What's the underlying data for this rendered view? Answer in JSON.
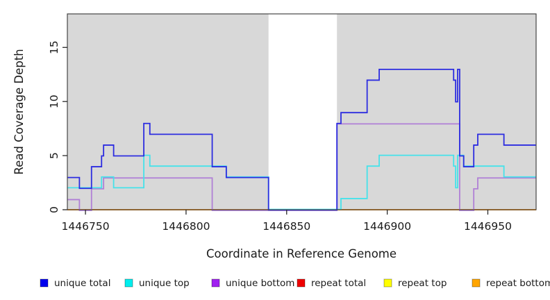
{
  "chart_data": {
    "type": "line",
    "step": true,
    "title": "",
    "xlabel": "Coordinate in Reference Genome",
    "ylabel": "Read Coverage Depth",
    "xlim": [
      1446741,
      1446974
    ],
    "ylim": [
      0,
      18.1
    ],
    "xticks": [
      1446750,
      1446800,
      1446850,
      1446900,
      1446950
    ],
    "yticks": [
      0,
      5,
      10,
      15
    ],
    "grid": false,
    "legend_position": "bottom",
    "plot_background": "#d8d8d8",
    "page_background": "#ffffff",
    "box_color": "#454545",
    "tick_color": "#2a2a2a",
    "gap_band": {
      "x_start": 1446841,
      "x_end": 1446875,
      "color": "#ffffff"
    },
    "series": [
      {
        "name": "unique total",
        "color": "#2c2ce0",
        "legend_color": "#0000ee",
        "points": [
          [
            1446741,
            3
          ],
          [
            1446747,
            2
          ],
          [
            1446753,
            4
          ],
          [
            1446758,
            5
          ],
          [
            1446759,
            6
          ],
          [
            1446764,
            5
          ],
          [
            1446779,
            8
          ],
          [
            1446782,
            7
          ],
          [
            1446813,
            4
          ],
          [
            1446820,
            3
          ],
          [
            1446841,
            0
          ],
          [
            1446875,
            8
          ],
          [
            1446877,
            9
          ],
          [
            1446890,
            12
          ],
          [
            1446896,
            13
          ],
          [
            1446933,
            12
          ],
          [
            1446934,
            10
          ],
          [
            1446935,
            13
          ],
          [
            1446936,
            5
          ],
          [
            1446938,
            4
          ],
          [
            1446943,
            6
          ],
          [
            1446945,
            7
          ],
          [
            1446958,
            6
          ],
          [
            1446974,
            6
          ]
        ]
      },
      {
        "name": "unique top",
        "color": "#45e2ea",
        "legend_color": "#00eeee",
        "points": [
          [
            1446741,
            2
          ],
          [
            1446758,
            3
          ],
          [
            1446764,
            2
          ],
          [
            1446779,
            5
          ],
          [
            1446782,
            4
          ],
          [
            1446820,
            3
          ],
          [
            1446841,
            0
          ],
          [
            1446877,
            1
          ],
          [
            1446890,
            4
          ],
          [
            1446896,
            5
          ],
          [
            1446933,
            4
          ],
          [
            1446934,
            2
          ],
          [
            1446935,
            5
          ],
          [
            1446938,
            4
          ],
          [
            1446958,
            3
          ],
          [
            1446974,
            3
          ]
        ]
      },
      {
        "name": "unique bottom",
        "color": "#b07fd6",
        "legend_color": "#a020f0",
        "points": [
          [
            1446741,
            1
          ],
          [
            1446747,
            0
          ],
          [
            1446753,
            2
          ],
          [
            1446759,
            3
          ],
          [
            1446813,
            0
          ],
          [
            1446875,
            8
          ],
          [
            1446936,
            0
          ],
          [
            1446943,
            2
          ],
          [
            1446945,
            3
          ],
          [
            1446974,
            3
          ]
        ]
      },
      {
        "name": "repeat total",
        "color": "#d8486c",
        "legend_color": "#ee0000",
        "points": [
          [
            1446741,
            0
          ],
          [
            1446974,
            0
          ]
        ]
      },
      {
        "name": "repeat top",
        "color": "#f5f500",
        "legend_color": "#ffff00",
        "points": [
          [
            1446741,
            0
          ],
          [
            1446974,
            0
          ]
        ]
      },
      {
        "name": "repeat bottom",
        "color": "#ff9d00",
        "legend_color": "#ffa500",
        "points": [
          [
            1446741,
            0
          ],
          [
            1446974,
            0
          ]
        ]
      }
    ]
  }
}
